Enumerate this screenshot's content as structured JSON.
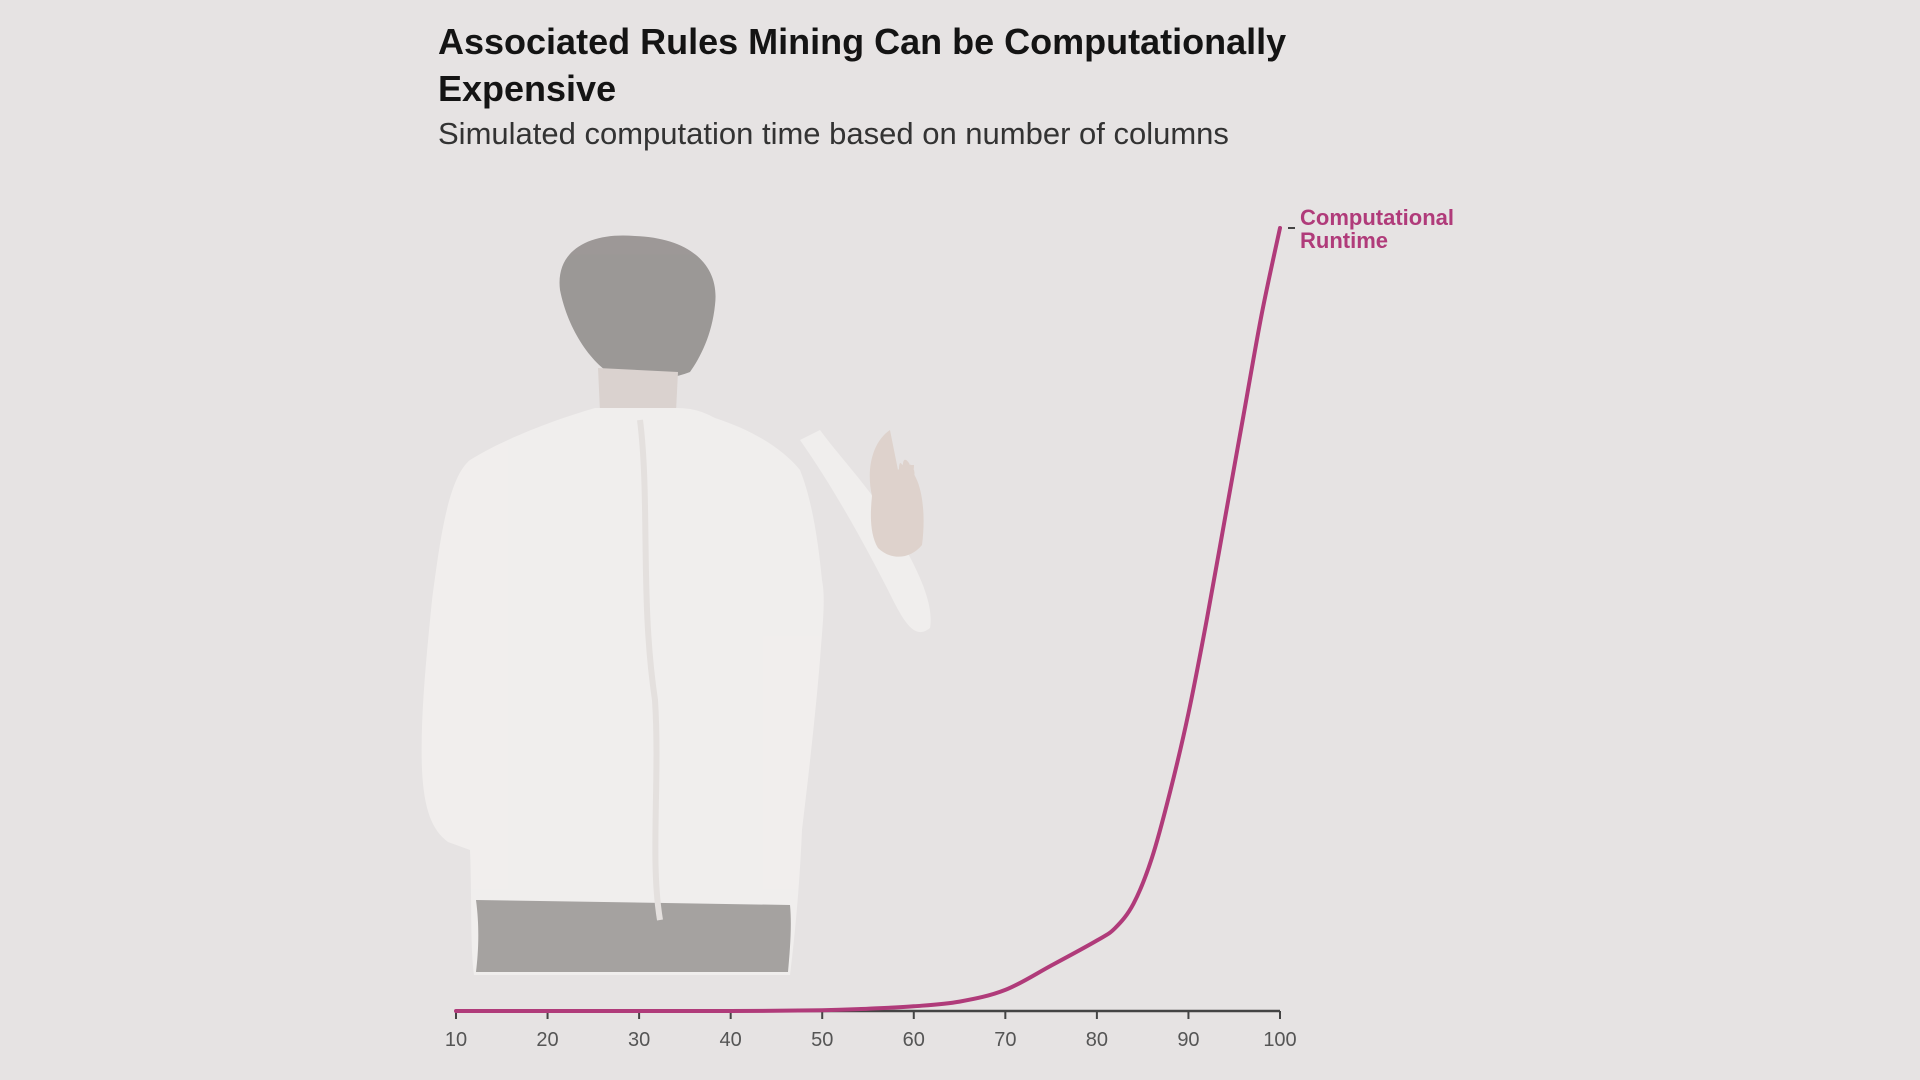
{
  "title": "Associated Rules Mining Can be Computationally Expensive",
  "subtitle": "Simulated computation time based on number of columns",
  "colors": {
    "background": "#e6e3e3",
    "series": "#b03b7a",
    "axis": "#444444",
    "figure_shirt": "#f2f0ef",
    "figure_hair": "#8f8b89"
  },
  "chart_data": {
    "type": "line",
    "title": "Associated Rules Mining Can be Computationally Expensive",
    "subtitle": "Simulated computation time based on number of columns",
    "xlabel": "",
    "ylabel": "",
    "xlim": [
      10,
      100
    ],
    "ylim": [
      0,
      100
    ],
    "x_ticks": [
      10,
      20,
      30,
      40,
      50,
      60,
      70,
      80,
      90,
      100
    ],
    "y_axis_visible": false,
    "grid": false,
    "legend": "none",
    "series": [
      {
        "name": "Computational Runtime",
        "label_lines": [
          "Computational",
          "Runtime"
        ],
        "x": [
          10,
          20,
          30,
          40,
          50,
          55,
          60,
          65,
          70,
          75,
          80,
          82,
          84,
          86,
          88,
          90,
          92,
          94,
          96,
          98,
          100
        ],
        "y": [
          0,
          0,
          0,
          0,
          0.1,
          0.3,
          0.6,
          1.2,
          2.7,
          5.8,
          9,
          10.6,
          13.7,
          19.5,
          28,
          38,
          50,
          63,
          76,
          89,
          100
        ]
      }
    ]
  }
}
